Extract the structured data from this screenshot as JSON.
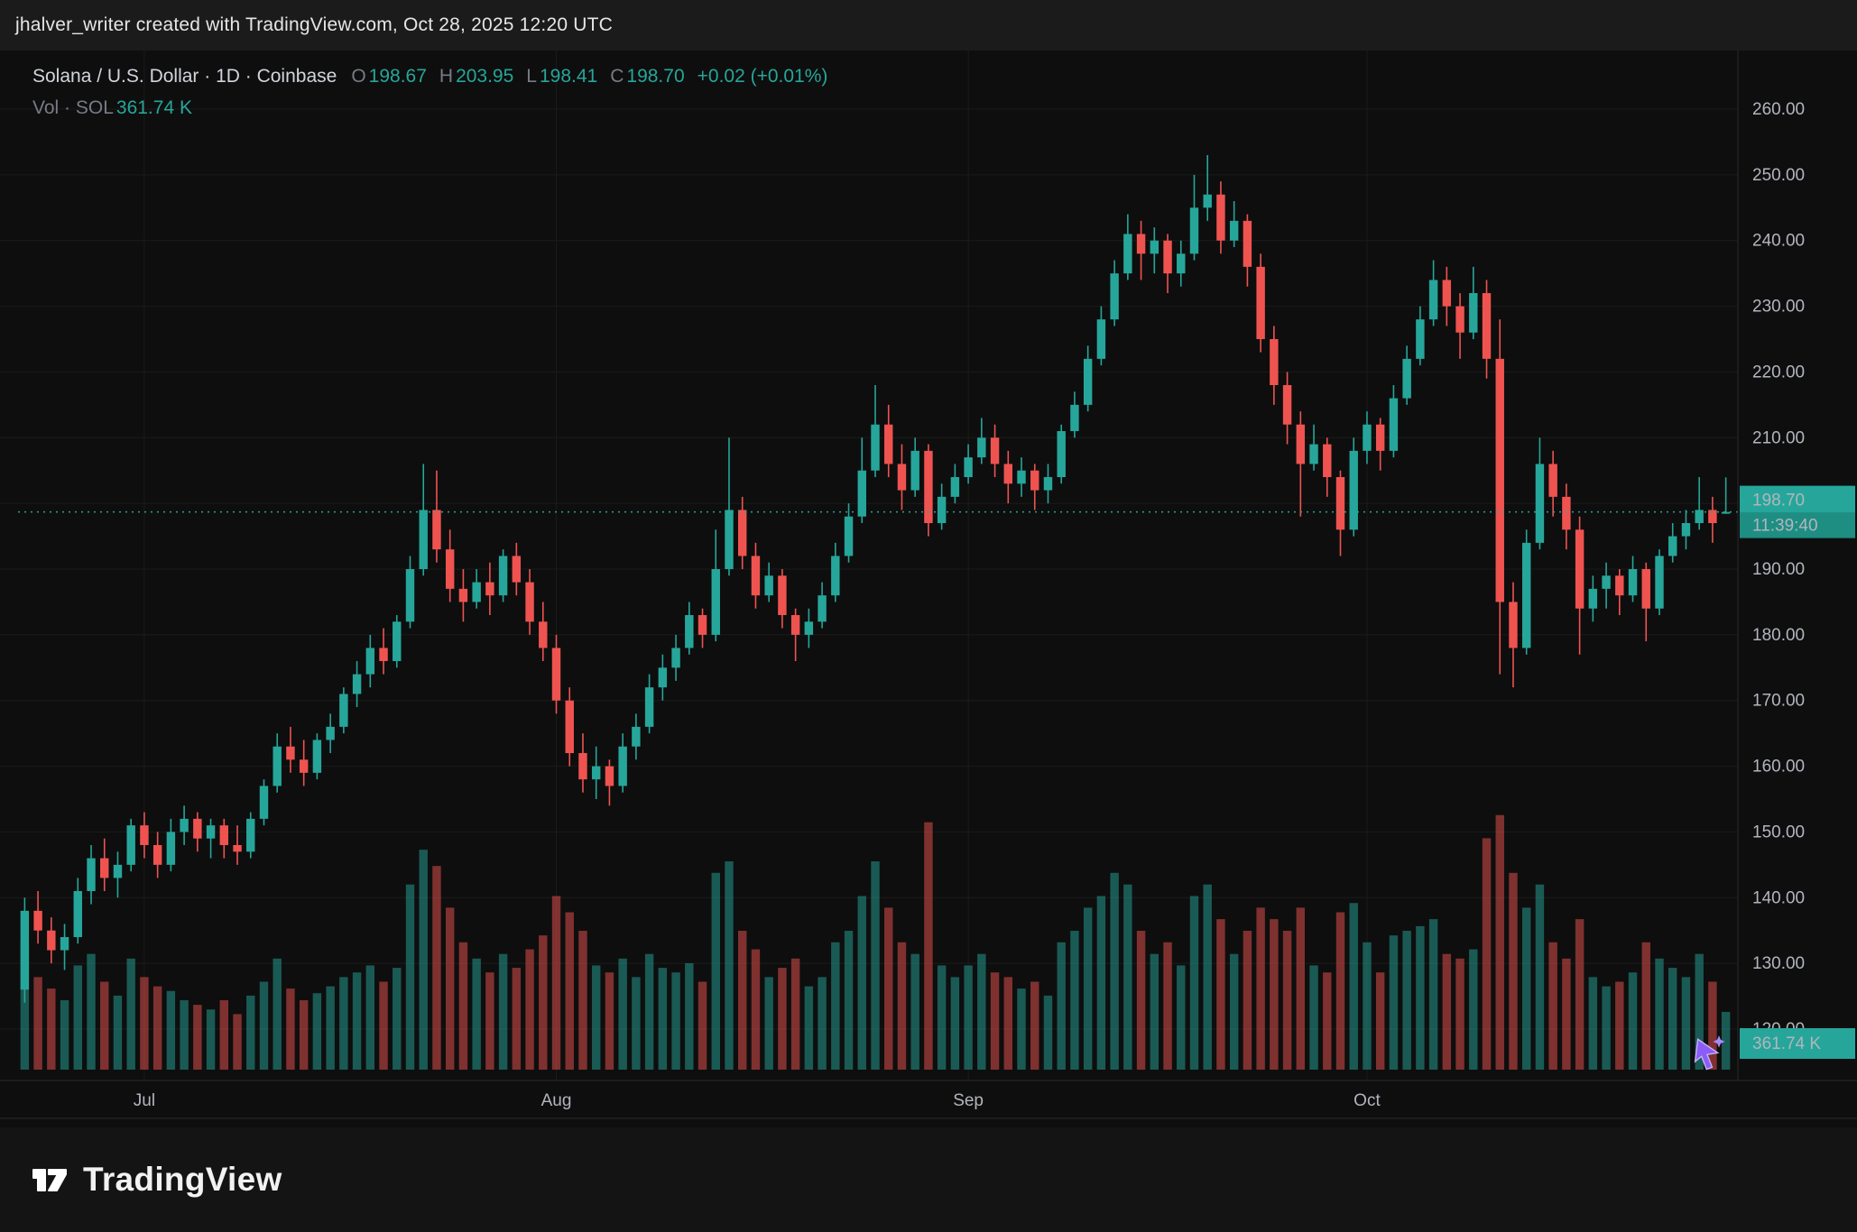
{
  "attribution": "jhalver_writer created with TradingView.com, Oct 28, 2025 12:20 UTC",
  "legend": {
    "symbol_title": "Solana / U.S. Dollar · 1D · Coinbase",
    "o_label": "O",
    "o_value": "198.67",
    "h_label": "H",
    "h_value": "203.95",
    "l_label": "L",
    "l_value": "198.41",
    "c_label": "C",
    "c_value": "198.70",
    "change": "+0.02 (+0.01%)",
    "volume_label": "Vol · SOL",
    "volume_value": "361.74 K"
  },
  "price_badge": {
    "price": "198.70",
    "countdown": "11:39:40"
  },
  "volume_badge": {
    "value": "361.74 K"
  },
  "footer": {
    "brand": "TradingView"
  },
  "colors": {
    "up": "#26a69a",
    "down": "#ef5350",
    "badge_bg": "#26a69a",
    "badge_bg_dark": "#1e8e83",
    "badge_text": "#0c1f1d",
    "grid": "#1b1b1b",
    "axis_text": "#b2b5be",
    "frame": "#2a2a2a",
    "dotted_line": "#26a69a",
    "cursor_purple": "#8b5cf6"
  },
  "axes": {
    "price_ticks": [
      "260.00",
      "250.00",
      "240.00",
      "230.00",
      "220.00",
      "210.00",
      "200.00",
      "190.00",
      "180.00",
      "170.00",
      "160.00",
      "150.00",
      "140.00",
      "130.00",
      "120.00"
    ],
    "time_ticks": [
      {
        "label": "Jul",
        "index": 9
      },
      {
        "label": "Aug",
        "index": 40
      },
      {
        "label": "Sep",
        "index": 71
      },
      {
        "label": "Oct",
        "index": 101
      }
    ]
  },
  "chart_data": {
    "type": "candlestick",
    "pair": "Solana / U.S. Dollar",
    "interval": "1D",
    "exchange": "Coinbase",
    "end_date_shown": "Oct 28, 2025 12:20 UTC",
    "price_axis_range": [
      120,
      260
    ],
    "volume_axis_max_k": 1650,
    "columns": [
      "open",
      "high",
      "low",
      "close",
      "volume_k"
    ],
    "last": {
      "open": 198.67,
      "high": 203.95,
      "low": 198.41,
      "close": 198.7,
      "change": "+0.02",
      "change_pct": "+0.01%",
      "volume": "361.74 K"
    },
    "candles": [
      [
        126,
        140,
        124,
        138,
        800
      ],
      [
        138,
        141,
        133,
        135,
        580
      ],
      [
        135,
        137,
        130,
        132,
        508
      ],
      [
        132,
        136,
        129,
        134,
        435
      ],
      [
        134,
        143,
        133,
        141,
        653
      ],
      [
        141,
        148,
        139,
        146,
        725
      ],
      [
        146,
        149,
        141,
        143,
        551
      ],
      [
        143,
        147,
        140,
        145,
        464
      ],
      [
        145,
        152,
        144,
        151,
        696
      ],
      [
        151,
        153,
        146,
        148,
        580
      ],
      [
        148,
        150,
        143,
        145,
        522
      ],
      [
        145,
        152,
        144,
        150,
        493
      ],
      [
        150,
        154,
        148,
        152,
        435
      ],
      [
        152,
        153,
        147,
        149,
        406
      ],
      [
        149,
        152,
        146,
        151,
        377
      ],
      [
        151,
        152,
        146,
        148,
        435
      ],
      [
        148,
        151,
        145,
        147,
        348
      ],
      [
        147,
        153,
        146,
        152,
        464
      ],
      [
        152,
        158,
        151,
        157,
        551
      ],
      [
        157,
        165,
        156,
        163,
        696
      ],
      [
        163,
        166,
        159,
        161,
        508
      ],
      [
        161,
        164,
        157,
        159,
        435
      ],
      [
        159,
        165,
        158,
        164,
        479
      ],
      [
        164,
        168,
        162,
        166,
        522
      ],
      [
        166,
        172,
        165,
        171,
        580
      ],
      [
        171,
        176,
        169,
        174,
        609
      ],
      [
        174,
        180,
        172,
        178,
        653
      ],
      [
        178,
        181,
        174,
        176,
        551
      ],
      [
        176,
        183,
        175,
        182,
        638
      ],
      [
        182,
        192,
        181,
        190,
        1160
      ],
      [
        190,
        206,
        189,
        199,
        1378
      ],
      [
        199,
        205,
        191,
        193,
        1276
      ],
      [
        193,
        196,
        185,
        187,
        1015
      ],
      [
        187,
        190,
        182,
        185,
        798
      ],
      [
        185,
        190,
        184,
        188,
        696
      ],
      [
        188,
        191,
        183,
        186,
        609
      ],
      [
        186,
        193,
        185,
        192,
        725
      ],
      [
        192,
        194,
        186,
        188,
        638
      ],
      [
        188,
        190,
        180,
        182,
        754
      ],
      [
        182,
        185,
        176,
        178,
        841
      ],
      [
        178,
        180,
        168,
        170,
        1088
      ],
      [
        170,
        172,
        160,
        162,
        986
      ],
      [
        162,
        165,
        156,
        158,
        870
      ],
      [
        158,
        163,
        155,
        160,
        653
      ],
      [
        160,
        161,
        154,
        157,
        609
      ],
      [
        157,
        165,
        156,
        163,
        696
      ],
      [
        163,
        168,
        161,
        166,
        580
      ],
      [
        166,
        174,
        165,
        172,
        725
      ],
      [
        172,
        177,
        170,
        175,
        638
      ],
      [
        175,
        180,
        173,
        178,
        609
      ],
      [
        178,
        185,
        177,
        183,
        667
      ],
      [
        183,
        184,
        178,
        180,
        551
      ],
      [
        180,
        196,
        179,
        190,
        1233
      ],
      [
        190,
        210,
        189,
        199,
        1305
      ],
      [
        199,
        201,
        190,
        192,
        870
      ],
      [
        192,
        194,
        184,
        186,
        754
      ],
      [
        186,
        191,
        185,
        189,
        580
      ],
      [
        189,
        190,
        181,
        183,
        638
      ],
      [
        183,
        184,
        176,
        180,
        696
      ],
      [
        180,
        184,
        178,
        182,
        522
      ],
      [
        182,
        188,
        181,
        186,
        580
      ],
      [
        186,
        194,
        185,
        192,
        798
      ],
      [
        192,
        200,
        191,
        198,
        870
      ],
      [
        198,
        210,
        197,
        205,
        1088
      ],
      [
        205,
        218,
        204,
        212,
        1305
      ],
      [
        212,
        215,
        204,
        206,
        1015
      ],
      [
        206,
        209,
        199,
        202,
        798
      ],
      [
        202,
        210,
        201,
        208,
        725
      ],
      [
        208,
        209,
        195,
        197,
        1550
      ],
      [
        197,
        203,
        196,
        201,
        653
      ],
      [
        201,
        206,
        200,
        204,
        580
      ],
      [
        204,
        209,
        203,
        207,
        653
      ],
      [
        207,
        213,
        206,
        210,
        725
      ],
      [
        210,
        212,
        204,
        206,
        609
      ],
      [
        206,
        208,
        200,
        203,
        580
      ],
      [
        203,
        207,
        201,
        205,
        508
      ],
      [
        205,
        206,
        199,
        202,
        551
      ],
      [
        202,
        206,
        200,
        204,
        464
      ],
      [
        204,
        212,
        203,
        211,
        798
      ],
      [
        211,
        217,
        210,
        215,
        870
      ],
      [
        215,
        224,
        214,
        222,
        1015
      ],
      [
        222,
        230,
        221,
        228,
        1088
      ],
      [
        228,
        237,
        227,
        235,
        1233
      ],
      [
        235,
        244,
        234,
        241,
        1160
      ],
      [
        241,
        243,
        234,
        238,
        870
      ],
      [
        238,
        242,
        235,
        240,
        725
      ],
      [
        240,
        241,
        232,
        235,
        798
      ],
      [
        235,
        240,
        233,
        238,
        653
      ],
      [
        238,
        250,
        237,
        245,
        1088
      ],
      [
        245,
        253,
        243,
        247,
        1160
      ],
      [
        247,
        249,
        238,
        240,
        943
      ],
      [
        240,
        246,
        239,
        243,
        725
      ],
      [
        243,
        244,
        233,
        236,
        870
      ],
      [
        236,
        238,
        223,
        225,
        1015
      ],
      [
        225,
        227,
        215,
        218,
        943
      ],
      [
        218,
        220,
        209,
        212,
        870
      ],
      [
        212,
        214,
        198,
        206,
        1015
      ],
      [
        206,
        212,
        205,
        209,
        653
      ],
      [
        209,
        210,
        201,
        204,
        609
      ],
      [
        204,
        205,
        192,
        196,
        986
      ],
      [
        196,
        210,
        195,
        208,
        1044
      ],
      [
        208,
        214,
        206,
        212,
        798
      ],
      [
        212,
        213,
        205,
        208,
        609
      ],
      [
        208,
        218,
        207,
        216,
        841
      ],
      [
        216,
        224,
        215,
        222,
        870
      ],
      [
        222,
        230,
        221,
        228,
        899
      ],
      [
        228,
        237,
        227,
        234,
        943
      ],
      [
        234,
        236,
        227,
        230,
        725
      ],
      [
        230,
        232,
        222,
        226,
        696
      ],
      [
        226,
        236,
        225,
        232,
        754
      ],
      [
        232,
        234,
        219,
        222,
        1450
      ],
      [
        222,
        228,
        174,
        185,
        1595
      ],
      [
        185,
        188,
        172,
        178,
        1233
      ],
      [
        178,
        196,
        177,
        194,
        1015
      ],
      [
        194,
        210,
        193,
        206,
        1160
      ],
      [
        206,
        208,
        198,
        201,
        798
      ],
      [
        201,
        203,
        193,
        196,
        696
      ],
      [
        196,
        198,
        177,
        184,
        943
      ],
      [
        184,
        189,
        182,
        187,
        580
      ],
      [
        187,
        191,
        184,
        189,
        522
      ],
      [
        189,
        190,
        183,
        186,
        551
      ],
      [
        186,
        192,
        185,
        190,
        609
      ],
      [
        190,
        191,
        179,
        184,
        798
      ],
      [
        184,
        193,
        183,
        192,
        696
      ],
      [
        192,
        197,
        191,
        195,
        638
      ],
      [
        195,
        199,
        193,
        197,
        580
      ],
      [
        197,
        204,
        196,
        199,
        725
      ],
      [
        199,
        201,
        194,
        197,
        551
      ],
      [
        198.67,
        203.95,
        198.41,
        198.7,
        361.74
      ]
    ]
  }
}
